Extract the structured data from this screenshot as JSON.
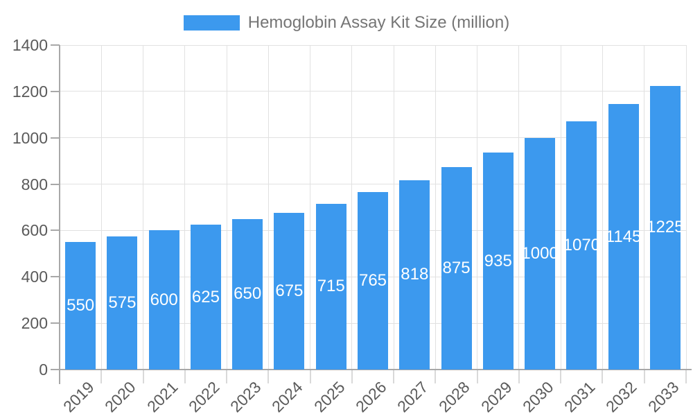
{
  "chart_data": {
    "type": "bar",
    "title": "Hemoglobin Assay Kit Size (million)",
    "legend_position": "top",
    "grid": true,
    "categories": [
      "2019",
      "2020",
      "2021",
      "2022",
      "2023",
      "2024",
      "2025",
      "2026",
      "2027",
      "2028",
      "2029",
      "2030",
      "2031",
      "2032",
      "2033"
    ],
    "values": [
      550,
      575,
      600,
      625,
      650,
      675,
      715,
      765,
      818,
      875,
      935,
      1000,
      1070,
      1145,
      1225
    ],
    "series": [
      {
        "name": "Hemoglobin Assay Kit Size (million)",
        "values": [
          550,
          575,
          600,
          625,
          650,
          675,
          715,
          765,
          818,
          875,
          935,
          1000,
          1070,
          1145,
          1225
        ]
      }
    ],
    "xlabel": "",
    "ylabel": "",
    "ylim": [
      0,
      1400
    ],
    "y_ticks": [
      0,
      200,
      400,
      600,
      800,
      1000,
      1200,
      1400
    ],
    "x_tick_rotation_deg": -45,
    "colors": {
      "bar": "#3C99EE",
      "value_label": "#FFFFFF",
      "axis_text": "#5A5A5A",
      "legend_text": "#757575",
      "grid": "#E1E1E1",
      "axis_line": "#A8A8A8",
      "x_tick": "#D9D9D9",
      "background": "#FFFFFF"
    }
  }
}
